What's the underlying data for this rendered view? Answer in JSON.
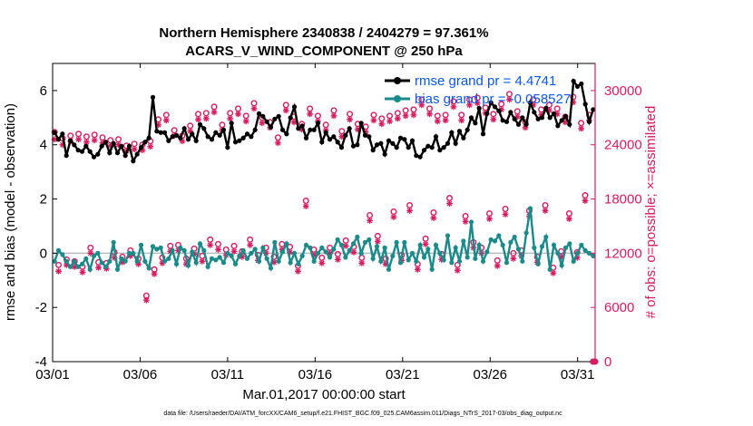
{
  "chart_data": {
    "type": "line",
    "title_line1": "Northern Hemisphere 2340838 / 2404279 = 97.361%",
    "title_line2": "ACARS_V_WIND_COMPONENT @ 250 hPa",
    "xlabel": "Mar.01,2017 00:00:00 start",
    "ylabel_left": "rmse and bias (model - observation)",
    "ylabel_right": "# of obs: o=possible; ×=assimilated",
    "x_tick_labels": [
      "03/01",
      "03/06",
      "03/11",
      "03/16",
      "03/21",
      "03/26",
      "03/31"
    ],
    "x_tick_days": [
      1,
      6,
      11,
      16,
      21,
      26,
      31
    ],
    "xlim": [
      1,
      32
    ],
    "ylim_left": [
      -4,
      7
    ],
    "y_ticks_left": [
      -4,
      -2,
      0,
      2,
      4,
      6
    ],
    "ylim_right": [
      0,
      33000
    ],
    "y_ticks_right": [
      0,
      6000,
      12000,
      18000,
      24000,
      30000
    ],
    "reference_line_y": 0,
    "footer": "data file: /Users/raeder/DAI/ATM_forcXX/CAM6_setup/f.e21.FHIST_BGC.f09_025.CAM6assim.011/Diags_NTrS_2017-03/obs_diag_output.nc",
    "colors": {
      "rmse": "#000000",
      "bias": "#1a8a8a",
      "obs": "#d81b60",
      "axis_right": "#d81b60",
      "legend_text": "#0b57e8",
      "zero_line": "#bbbbbb"
    },
    "series": [
      {
        "name": "rmse grand pr = 4.4741",
        "axis": "left",
        "values": [
          4.45,
          4.2,
          4.4,
          3.6,
          4.15,
          4.0,
          3.8,
          3.75,
          3.95,
          3.75,
          3.55,
          3.65,
          3.95,
          4.1,
          3.7,
          4.05,
          3.7,
          3.95,
          3.6,
          3.95,
          3.4,
          3.65,
          3.9,
          4.1,
          4.25,
          5.75,
          4.5,
          4.45,
          4.45,
          4.15,
          4.3,
          4.35,
          4.25,
          4.6,
          4.2,
          4.4,
          4.15,
          4.75,
          4.6,
          4.3,
          4.2,
          4.45,
          4.35,
          4.55,
          3.9,
          4.8,
          4.1,
          4.15,
          4.25,
          4.4,
          4.3,
          4.55,
          5.15,
          5.05,
          4.85,
          4.65,
          4.95,
          5.05,
          4.55,
          4.4,
          5.0,
          5.4,
          4.6,
          4.7,
          4.25,
          4.55,
          4.55,
          4.8,
          4.1,
          4.45,
          4.2,
          4.3,
          4.1,
          3.9,
          4.35,
          4.6,
          3.95,
          4.0,
          4.8,
          4.35,
          4.3,
          3.8,
          4.0,
          4.05,
          3.65,
          4.15,
          4.05,
          3.9,
          4.25,
          4.2,
          3.9,
          4.15,
          3.6,
          3.55,
          3.8,
          3.95,
          3.9,
          4.3,
          3.8,
          3.9,
          4.05,
          4.45,
          4.05,
          4.5,
          4.25,
          4.55,
          5.0,
          4.8,
          5.35,
          4.4,
          5.15,
          5.55,
          5.4,
          5.25,
          4.9,
          4.85,
          5.2,
          4.95,
          4.75,
          5.0,
          4.75,
          5.55,
          5.2,
          4.95,
          5.0,
          5.35,
          5.0,
          5.15,
          4.7,
          4.9,
          5.05,
          4.75,
          6.35,
          6.15,
          6.25,
          5.5,
          4.85,
          5.3
        ],
        "marker": "o"
      },
      {
        "name": "bias grand pr = -0.058527",
        "axis": "left",
        "values": [
          -0.3,
          0.1,
          -0.05,
          -0.3,
          -0.5,
          -0.3,
          -0.5,
          -0.4,
          -0.2,
          -0.6,
          -0.1,
          0.0,
          -0.35,
          -0.5,
          -0.3,
          0.4,
          -0.6,
          -0.2,
          -0.3,
          0.0,
          0.0,
          -0.3,
          0.3,
          -0.3,
          -0.55,
          0.25,
          0.15,
          0.2,
          -0.3,
          -0.2,
          0.1,
          -0.4,
          0.2,
          0.1,
          -0.45,
          0.05,
          -0.35,
          0.35,
          0.1,
          -0.5,
          -0.2,
          -0.25,
          -0.15,
          -0.35,
          0.0,
          -0.1,
          -0.4,
          -0.1,
          0.1,
          -0.2,
          0.0,
          0.15,
          -0.3,
          0.2,
          -0.2,
          -0.55,
          0.4,
          -0.3,
          0.05,
          0.35,
          -0.35,
          0.0,
          -0.4,
          -0.1,
          0.3,
          0.2,
          -0.3,
          0.0,
          0.2,
          0.05,
          -0.15,
          0.15,
          0.5,
          0.3,
          -0.15,
          0.1,
          0.35,
          0.6,
          0.0,
          0.4,
          0.5,
          -0.2,
          0.25,
          -0.3,
          0.2,
          -0.6,
          -0.1,
          0.4,
          -0.35,
          0.4,
          -0.25,
          0.0,
          -0.3,
          0.3,
          -0.15,
          0.15,
          -0.6,
          0.3,
          0.0,
          -0.25,
          0.65,
          -0.35,
          0.2,
          -0.3,
          0.45,
          -0.15,
          1.15,
          -0.2,
          0.3,
          -0.3,
          0.05,
          0.5,
          0.45,
          0.65,
          0.3,
          -0.35,
          0.4,
          0.6,
          0.15,
          -0.3,
          0.75,
          1.65,
          0.2,
          -0.4,
          0.25,
          0.6,
          -0.6,
          0.3,
          0.0,
          -0.45,
          0.2,
          0.35,
          -0.3,
          0.0,
          0.3,
          0.1,
          0.0,
          -0.1
        ],
        "marker": "o"
      },
      {
        "name": "# of obs possible",
        "axis": "right",
        "marker": "o",
        "values": [
          25400,
          10700,
          24700,
          11300,
          25000,
          11100,
          25200,
          10500,
          24900,
          12600,
          25100,
          11000,
          24800,
          10900,
          24500,
          12100,
          24600,
          11600,
          23900,
          12300,
          24100,
          11400,
          24000,
          7300,
          24400,
          10200,
          26800,
          11500,
          27300,
          12800,
          25600,
          12900,
          25000,
          11400,
          26100,
          12500,
          27400,
          11700,
          27500,
          13500,
          28200,
          13000,
          26200,
          12400,
          27500,
          12800,
          28000,
          12200,
          27200,
          13500,
          28600,
          11800,
          27000,
          12600,
          26500,
          11600,
          24800,
          13000,
          28400,
          12700,
          27100,
          10600,
          26300,
          17800,
          28000,
          12400,
          27200,
          11500,
          26200,
          12600,
          27800,
          11900,
          25500,
          13400,
          27400,
          12700,
          26300,
          11500,
          26000,
          16200,
          27300,
          13900,
          26900,
          11400,
          27200,
          16600,
          27500,
          11800,
          27800,
          17300,
          27900,
          10800,
          29000,
          13600,
          28000,
          16500,
          27200,
          11900,
          27300,
          18100,
          28800,
          10700,
          27300,
          16100,
          29000,
          13200,
          29200,
          12600,
          28100,
          16400,
          27400,
          11200,
          28500,
          16900,
          29600,
          12000,
          27700,
          12300,
          26500,
          16700,
          29000,
          11600,
          27900,
          17300,
          28400,
          10400,
          28000,
          12200,
          27100,
          16400,
          29300,
          12100,
          26400,
          18400,
          27300,
          0
        ]
      },
      {
        "name": "# of obs assimilated",
        "axis": "right",
        "marker": "x",
        "values": [
          24600,
          10000,
          24000,
          10700,
          24400,
          10500,
          24600,
          9900,
          24300,
          12000,
          24500,
          10400,
          24200,
          10300,
          23900,
          11500,
          24000,
          11000,
          23300,
          11700,
          23500,
          10800,
          23400,
          6800,
          23800,
          9700,
          26200,
          10900,
          26700,
          12200,
          25000,
          12300,
          24400,
          10800,
          25500,
          11900,
          26800,
          11100,
          26900,
          12900,
          27600,
          12400,
          25600,
          11800,
          26900,
          12200,
          27400,
          11600,
          26600,
          12900,
          28000,
          11200,
          26400,
          12000,
          25900,
          11000,
          24200,
          12400,
          27800,
          12100,
          26500,
          10000,
          25700,
          17200,
          27400,
          11800,
          26600,
          10900,
          25600,
          12000,
          27200,
          11300,
          24900,
          12800,
          26800,
          12100,
          25700,
          10900,
          25400,
          15600,
          26700,
          13300,
          26300,
          10800,
          26600,
          16000,
          26900,
          11200,
          27200,
          16700,
          27300,
          10200,
          28400,
          13000,
          27400,
          15900,
          26600,
          11300,
          26700,
          17500,
          28200,
          10100,
          26700,
          15500,
          28400,
          12600,
          28600,
          12000,
          27500,
          15800,
          26800,
          10600,
          27900,
          16300,
          29000,
          11400,
          27100,
          11700,
          25900,
          16100,
          28400,
          11000,
          27300,
          16700,
          27800,
          9800,
          27400,
          11600,
          26500,
          15800,
          28700,
          11500,
          25800,
          17800,
          26700,
          0
        ]
      }
    ]
  }
}
